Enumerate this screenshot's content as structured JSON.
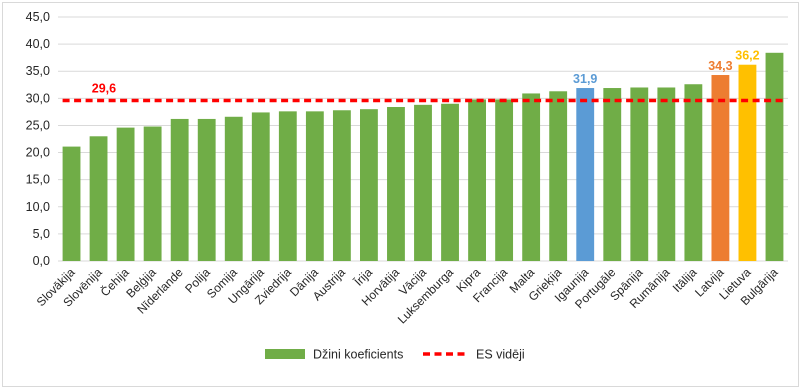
{
  "chart_data": {
    "type": "bar",
    "title": "",
    "xlabel": "",
    "ylabel": "",
    "ylim": [
      0,
      45
    ],
    "yticks": [
      "0,0",
      "5,0",
      "10,0",
      "15,0",
      "20,0",
      "25,0",
      "30,0",
      "35,0",
      "40,0",
      "45,0"
    ],
    "grid": true,
    "legend_position": "bottom",
    "categories": [
      "Slovākija",
      "Slovēnija",
      "Čehija",
      "Beļģija",
      "Nīderlande",
      "Polija",
      "Somija",
      "Ungārija",
      "Zviedrija",
      "Dānija",
      "Austrija",
      "Īrija",
      "Horvātija",
      "Vācija",
      "Luksemburga",
      "Kipra",
      "Francija",
      "Malta",
      "Grieķija",
      "Igaunija",
      "Portugāle",
      "Spānija",
      "Rumānija",
      "Itālija",
      "Latvija",
      "Lietuva",
      "Bulgārija"
    ],
    "series": [
      {
        "name": "Džini koeficients",
        "type": "bar",
        "color": "#70ad47",
        "values": [
          21.1,
          23.0,
          24.6,
          24.8,
          26.2,
          26.2,
          26.6,
          27.4,
          27.6,
          27.6,
          27.8,
          28.0,
          28.4,
          28.8,
          29.0,
          29.8,
          29.8,
          30.9,
          31.3,
          31.9,
          31.9,
          32.0,
          32.0,
          32.6,
          34.3,
          36.2,
          38.4
        ],
        "highlights": [
          {
            "category": "Igaunija",
            "color": "#5b9bd5",
            "label": "31,9"
          },
          {
            "category": "Latvija",
            "color": "#ed7d31",
            "label": "34,3"
          },
          {
            "category": "Lietuva",
            "color": "#ffc000",
            "label": "36,2"
          }
        ]
      },
      {
        "name": "ES vidēji",
        "type": "line",
        "style": "dashed",
        "color": "#ff0000",
        "value": 29.6,
        "label": "29,6"
      }
    ]
  }
}
